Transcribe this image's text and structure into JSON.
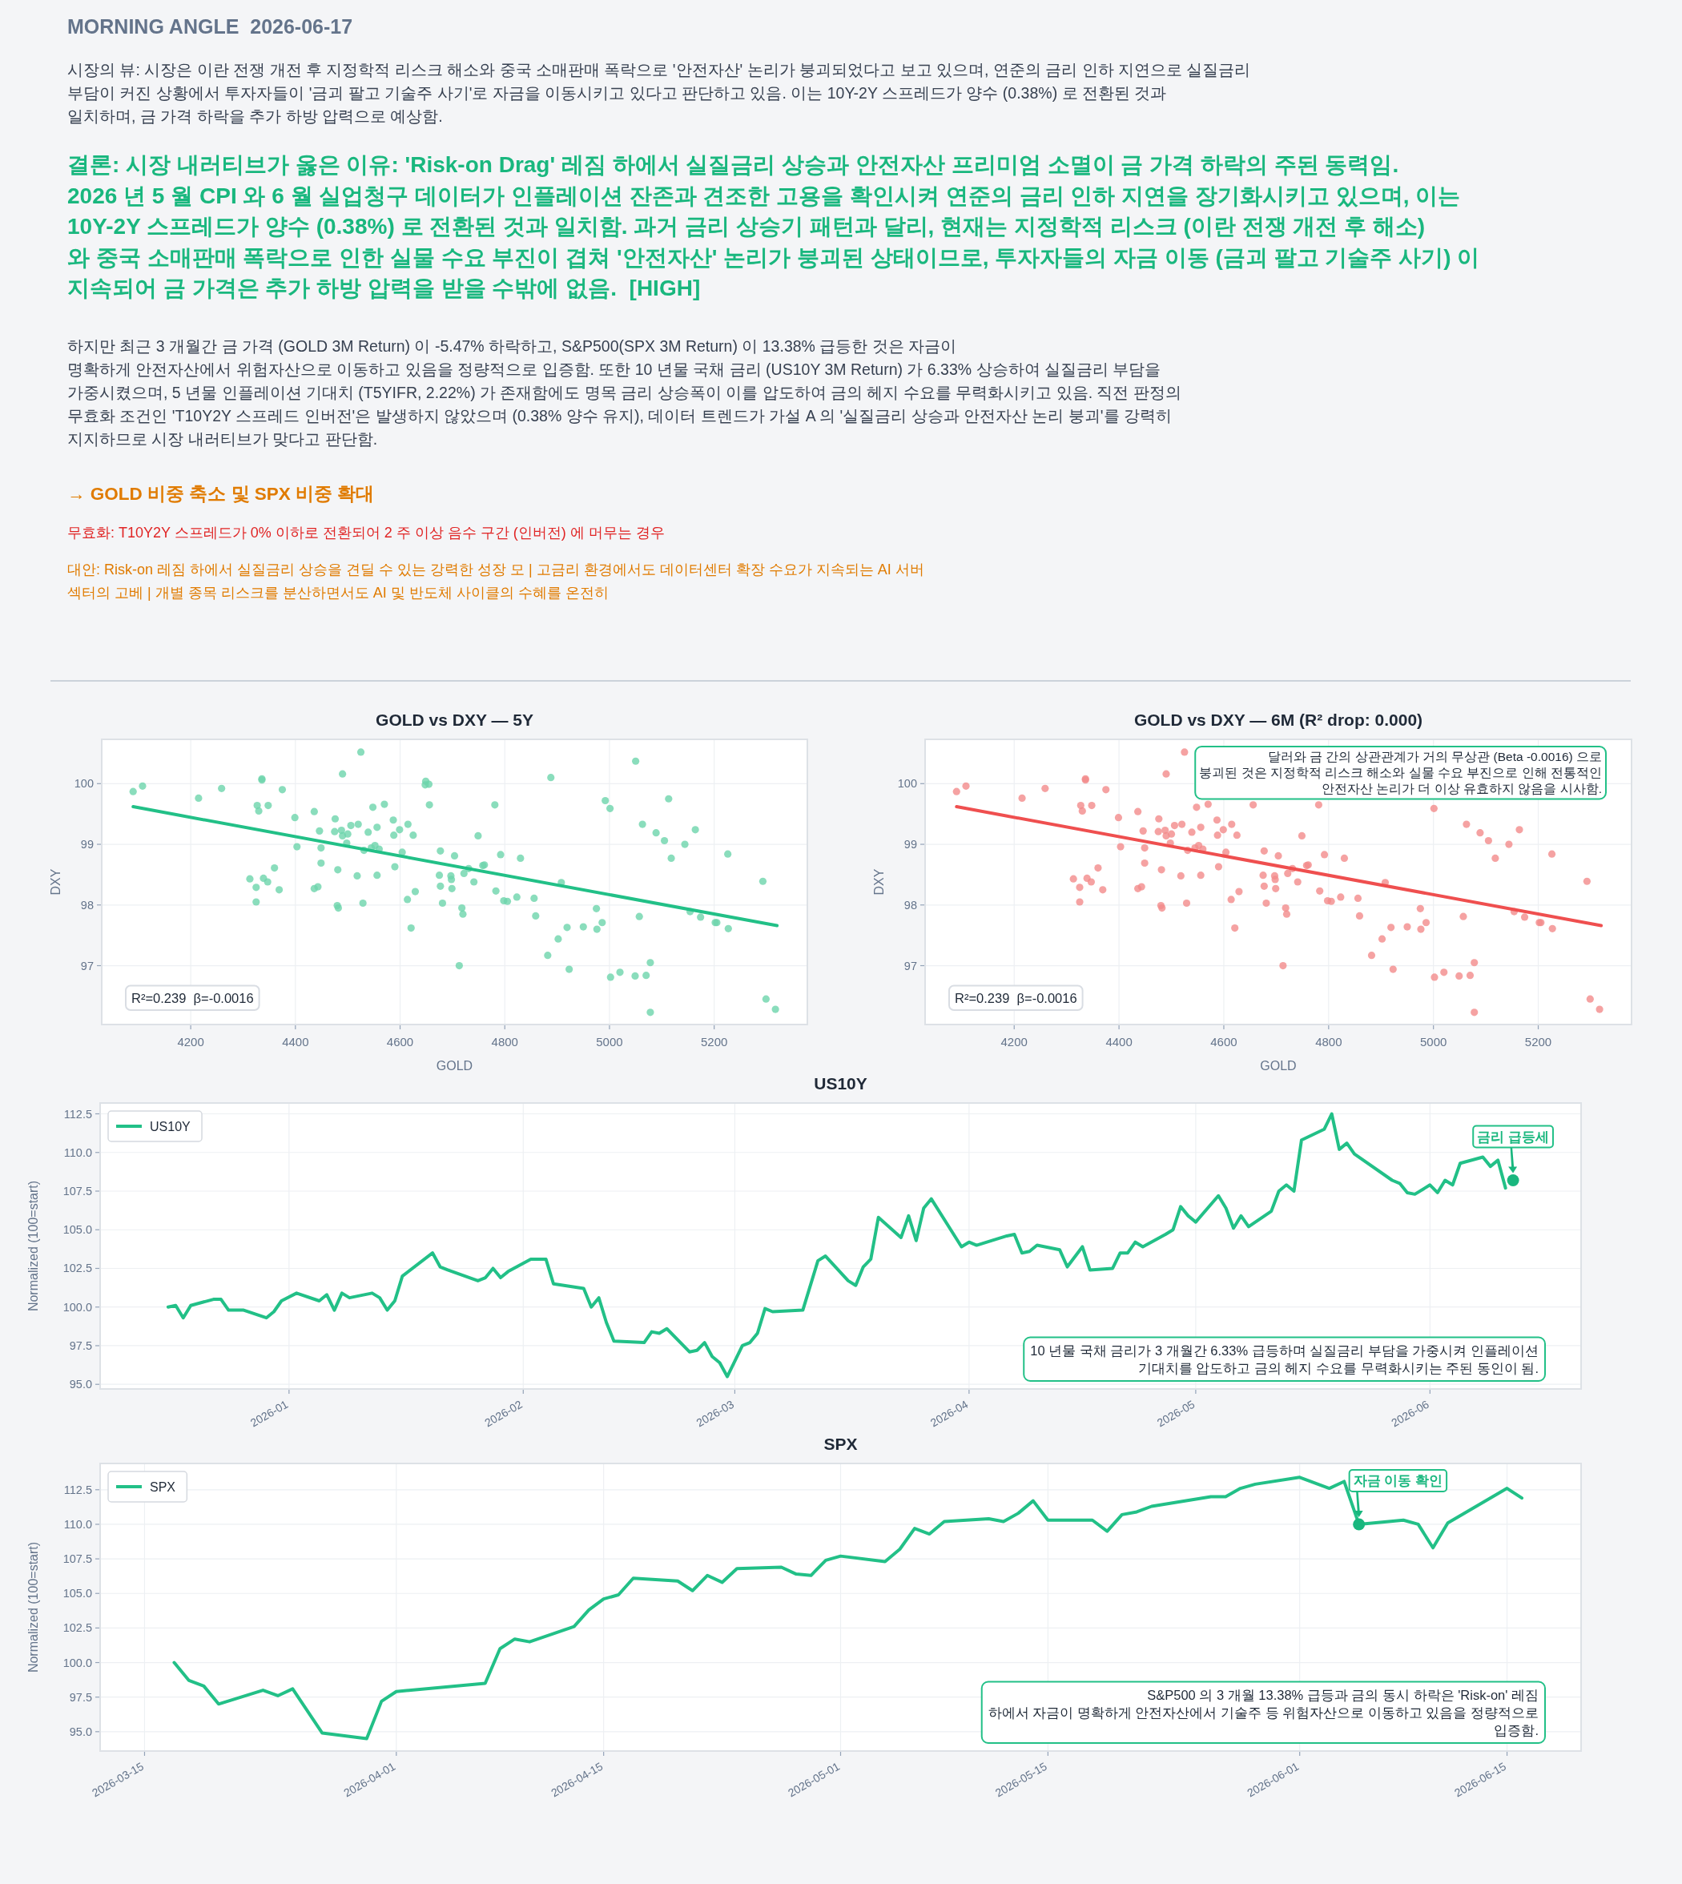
{
  "chart_data": [
    {
      "type": "other",
      "title": "MORNING ANGLE  2026-06-17",
      "annotations": [
        "시장의 뷰: 시장은 이란 전쟁 개전 후 지정학적 리스크 해소와 중국 소매판매 폭락으로 '안전자산' 논리가 붕괴되었다고 보고 있으며, 연준의 금리 인하 지연으로 실질금리\n부담이 커진 상황에서 투자자들이 '금괴 팔고 기술주 사기'로 자금을 이동시키고 있다고 판단하고 있음. 이는 10Y-2Y 스프레드가 양수 (0.38%) 로 전환된 것과\n일치하며, 금 가격 하락을 추가 하방 압력으로 예상함.",
        "결론: 시장 내러티브가 옳은 이유: 'Risk-on Drag' 레짐 하에서 실질금리 상승과 안전자산 프리미엄 소멸이 금 가격 하락의 주된 동력임.\n2026 년 5 월 CPI 와 6 월 실업청구 데이터가 인플레이션 잔존과 견조한 고용을 확인시켜 연준의 금리 인하 지연을 장기화시키고 있으며, 이는\n10Y-2Y 스프레드가 양수 (0.38%) 로 전환된 것과 일치함. 과거 금리 상승기 패턴과 달리, 현재는 지정학적 리스크 (이란 전쟁 개전 후 해소)\n와 중국 소매판매 폭락으로 인한 실물 수요 부진이 겹쳐 '안전자산' 논리가 붕괴된 상태이므로, 투자자들의 자금 이동 (금괴 팔고 기술주 사기) 이\n지속되어 금 가격은 추가 하방 압력을 받을 수밖에 없음.  [HIGH]",
        "하지만 최근 3 개월간 금 가격 (GOLD 3M Return) 이 -5.47% 하락하고, S&P500(SPX 3M Return) 이 13.38% 급등한 것은 자금이\n명확하게 안전자산에서 위험자산으로 이동하고 있음을 정량적으로 입증함. 또한 10 년물 국채 금리 (US10Y 3M Return) 가 6.33% 상승하여 실질금리 부담을\n가중시켰으며, 5 년물 인플레이션 기대치 (T5YIFR, 2.22%) 가 존재함에도 명목 금리 상승폭이 이를 압도하여 금의 헤지 수요를 무력화시키고 있음. 직전 판정의\n무효화 조건인 'T10Y2Y 스프레드 인버전'은 발생하지 않았으며 (0.38% 양수 유지), 데이터 트렌드가 가설 A 의 '실질금리 상승과 안전자산 논리 붕괴'를 강력히\n지지하므로 시장 내러티브가 맞다고 판단함.",
        "→ GOLD 비중 축소 및 SPX 비중 확대",
        "무효화: T10Y2Y 스프레드가 0% 이하로 전환되어 2 주 이상 음수 구간 (인버전) 에 머무는 경우",
        "대안: Risk-on 레짐 하에서 실질금리 상승을 견딜 수 있는 강력한 성장 모 | 고금리 환경에서도 데이터센터 확장 수요가 지속되는 AI 서버\n섹터의 고베 | 개별 종목 리스크를 분산하면서도 AI 및 반도체 사이클의 수혜를 온전히"
      ]
    },
    {
      "type": "scatter",
      "title": "GOLD vs DXY — 5Y",
      "xlabel": "GOLD",
      "ylabel": "DXY",
      "xlim": [
        4030,
        5378
      ],
      "ylim": [
        96.03,
        100.73
      ],
      "xticks": [
        4200,
        4400,
        4600,
        4800,
        5000,
        5200
      ],
      "yticks": [
        97,
        98,
        99,
        100
      ],
      "grid": true,
      "series": [
        {
          "type": "scatter",
          "color": "#6dd5ab",
          "marker": "circle",
          "x": [
            4090,
            4108,
            4215,
            4259,
            4313,
            4325,
            4325,
            4327,
            4330,
            4336,
            4336,
            4339,
            4347,
            4348,
            4360,
            4369,
            4375,
            4399,
            4403,
            4436,
            4436,
            4443,
            4446,
            4449,
            4449,
            4476,
            4475,
            4481,
            4480,
            4482,
            4490,
            4488,
            4490,
            4498,
            4500,
            4506,
            4518,
            4520,
            4525,
            4529,
            4531,
            4539,
            4545,
            4548,
            4552,
            4556,
            4556,
            4560,
            4570,
            4587,
            4588,
            4590,
            4599,
            4604,
            4615,
            4614,
            4621,
            4625,
            4629,
            4648,
            4649,
            4655,
            4656,
            4675,
            4677,
            4677,
            4681,
            4697,
            4698,
            4699,
            4704,
            4713,
            4718,
            4720,
            4722,
            4731,
            4741,
            4749,
            4758,
            4761,
            4781,
            4783,
            4792,
            4798,
            4805,
            4823,
            4830,
            4856,
            4859,
            4882,
            4888,
            4902,
            4908,
            4919,
            4923,
            4950,
            4975,
            4976,
            4986,
            4992,
            5001,
            5002,
            5020,
            5049,
            5050,
            5057,
            5063,
            5070,
            5078,
            5078,
            5089,
            5105,
            5113,
            5118,
            5144,
            5154,
            5164,
            5174,
            5202,
            5205,
            5226,
            5227,
            5293,
            5299,
            5317
          ],
          "values": [
            99.87,
            99.96,
            99.76,
            99.92,
            98.43,
            98.29,
            98.05,
            99.64,
            99.55,
            100.08,
            100.06,
            98.44,
            98.38,
            99.64,
            98.61,
            98.25,
            99.9,
            99.44,
            98.96,
            98.27,
            99.54,
            98.3,
            99.22,
            98.94,
            98.69,
            99.42,
            99.21,
            98.58,
            97.99,
            97.95,
            100.16,
            99.23,
            99.14,
            99.02,
            99.17,
            99.31,
            98.48,
            99.33,
            100.52,
            98.03,
            98.9,
            99.2,
            98.94,
            99.61,
            98.98,
            99.28,
            98.49,
            98.92,
            99.66,
            99.4,
            99.15,
            98.63,
            99.24,
            98.87,
            99.33,
            98.09,
            97.62,
            99.15,
            98.22,
            99.98,
            100.04,
            99.99,
            99.65,
            98.49,
            98.31,
            98.89,
            98.03,
            98.48,
            98.42,
            98.27,
            98.81,
            97.0,
            97.95,
            97.85,
            98.52,
            98.6,
            98.38,
            99.14,
            98.65,
            98.66,
            99.65,
            98.23,
            98.83,
            98.07,
            98.06,
            98.13,
            98.77,
            98.11,
            97.82,
            97.17,
            100.1,
            97.44,
            98.37,
            97.63,
            96.94,
            97.64,
            97.94,
            97.6,
            97.71,
            99.72,
            99.59,
            96.81,
            96.89,
            96.83,
            100.37,
            97.81,
            99.33,
            96.84,
            97.05,
            96.23,
            99.19,
            99.06,
            99.75,
            98.77,
            99.0,
            97.89,
            99.24,
            97.8,
            97.71,
            97.71,
            98.84,
            97.61,
            98.39,
            96.45,
            96.28
          ]
        },
        {
          "type": "line",
          "color": "#22c087",
          "x": [
            4090,
            5320
          ],
          "values": [
            99.62,
            97.66
          ]
        }
      ],
      "annotations": [
        "R²=0.239  β=-0.0016"
      ]
    },
    {
      "type": "scatter",
      "title": "GOLD vs DXY — 6M (R² drop: 0.000)",
      "xlabel": "GOLD",
      "ylabel": "DXY",
      "xlim": [
        4030,
        5378
      ],
      "ylim": [
        96.03,
        100.73
      ],
      "xticks": [
        4200,
        4400,
        4600,
        4800,
        5000,
        5200
      ],
      "yticks": [
        97,
        98,
        99,
        100
      ],
      "grid": true,
      "series": [
        {
          "type": "scatter",
          "color": "#f28b8b",
          "marker": "circle",
          "x": [
            4090,
            4108,
            4215,
            4259,
            4313,
            4325,
            4325,
            4327,
            4330,
            4336,
            4336,
            4339,
            4347,
            4348,
            4360,
            4369,
            4375,
            4399,
            4403,
            4436,
            4436,
            4443,
            4446,
            4449,
            4449,
            4476,
            4475,
            4481,
            4480,
            4482,
            4490,
            4488,
            4490,
            4498,
            4500,
            4506,
            4518,
            4520,
            4525,
            4529,
            4531,
            4539,
            4545,
            4548,
            4552,
            4556,
            4556,
            4560,
            4570,
            4587,
            4588,
            4590,
            4599,
            4604,
            4615,
            4614,
            4621,
            4625,
            4629,
            4648,
            4649,
            4655,
            4656,
            4675,
            4677,
            4677,
            4681,
            4697,
            4698,
            4699,
            4704,
            4713,
            4718,
            4720,
            4722,
            4731,
            4741,
            4749,
            4758,
            4761,
            4781,
            4783,
            4792,
            4798,
            4805,
            4823,
            4830,
            4856,
            4859,
            4882,
            4888,
            4902,
            4908,
            4919,
            4923,
            4950,
            4975,
            4976,
            4986,
            4992,
            5001,
            5002,
            5020,
            5049,
            5050,
            5057,
            5063,
            5070,
            5078,
            5078,
            5089,
            5105,
            5113,
            5118,
            5144,
            5154,
            5164,
            5174,
            5202,
            5205,
            5226,
            5227,
            5293,
            5299,
            5317
          ],
          "values": [
            99.87,
            99.96,
            99.76,
            99.92,
            98.43,
            98.29,
            98.05,
            99.64,
            99.55,
            100.08,
            100.06,
            98.44,
            98.38,
            99.64,
            98.61,
            98.25,
            99.9,
            99.44,
            98.96,
            98.27,
            99.54,
            98.3,
            99.22,
            98.94,
            98.69,
            99.42,
            99.21,
            98.58,
            97.99,
            97.95,
            100.16,
            99.23,
            99.14,
            99.02,
            99.17,
            99.31,
            98.48,
            99.33,
            100.52,
            98.03,
            98.9,
            99.2,
            98.94,
            99.61,
            98.98,
            99.28,
            98.49,
            98.92,
            99.66,
            99.4,
            99.15,
            98.63,
            99.24,
            98.87,
            99.33,
            98.09,
            97.62,
            99.15,
            98.22,
            null,
            null,
            null,
            99.65,
            98.49,
            98.31,
            98.89,
            98.03,
            98.48,
            98.42,
            98.27,
            98.81,
            97.0,
            97.95,
            97.85,
            98.52,
            98.6,
            98.38,
            99.14,
            98.65,
            98.66,
            99.65,
            98.23,
            98.83,
            98.07,
            98.06,
            98.13,
            98.77,
            98.11,
            97.82,
            97.17,
            null,
            97.44,
            98.37,
            97.63,
            96.94,
            97.64,
            97.94,
            97.6,
            97.71,
            null,
            99.59,
            96.81,
            96.89,
            96.83,
            null,
            97.81,
            99.33,
            96.84,
            97.05,
            96.23,
            99.19,
            99.06,
            null,
            98.77,
            99.0,
            97.89,
            99.24,
            97.8,
            97.71,
            97.71,
            98.84,
            97.61,
            98.39,
            96.45,
            96.28
          ]
        },
        {
          "type": "line",
          "color": "#ef4f4f",
          "x": [
            4090,
            5320
          ],
          "values": [
            99.62,
            97.66
          ]
        }
      ],
      "annotations": [
        "R²=0.239  β=-0.0016",
        "달러와 금 간의 상관관계가 거의 무상관 (Beta -0.0016) 으로\n붕괴된 것은 지정학적 리스크 해소와 실물 수요 부진으로 인해 전통적인\n안전자산 논리가 더 이상 유효하지 않음을 시사함."
      ]
    },
    {
      "type": "line",
      "title": "US10Y",
      "ylabel": "Normalized (100=start)",
      "xlim": [
        "2025-12-07",
        "2026-06-21"
      ],
      "ylim": [
        94.7,
        113.2
      ],
      "xticks": [
        {
          "value": "2026-01-01",
          "label": "2026-01"
        },
        {
          "value": "2026-02-01",
          "label": "2026-02"
        },
        {
          "value": "2026-03-01",
          "label": "2026-03"
        },
        {
          "value": "2026-04-01",
          "label": "2026-04"
        },
        {
          "value": "2026-05-01",
          "label": "2026-05"
        },
        {
          "value": "2026-06-01",
          "label": "2026-06"
        }
      ],
      "yticks": [
        {
          "value": 95,
          "label": "95.0"
        },
        {
          "value": 97.5,
          "label": "97.5"
        },
        {
          "value": 100,
          "label": "100.0"
        },
        {
          "value": 102.5,
          "label": "102.5"
        },
        {
          "value": 105,
          "label": "105.0"
        },
        {
          "value": 107.5,
          "label": "107.5"
        },
        {
          "value": 110,
          "label": "110.0"
        },
        {
          "value": 112.5,
          "label": "112.5"
        }
      ],
      "grid": true,
      "legend": "top left",
      "series": [
        {
          "name": "US10Y",
          "color": "#22c087",
          "x": [
            "2025-12-16",
            "2025-12-17",
            "2025-12-18",
            "2025-12-19",
            "2025-12-22",
            "2025-12-23",
            "2025-12-24",
            "2025-12-26",
            "2025-12-29",
            "2025-12-30",
            "2025-12-31",
            "2026-01-02",
            "2026-01-05",
            "2026-01-06",
            "2026-01-07",
            "2026-01-08",
            "2026-01-09",
            "2026-01-12",
            "2026-01-13",
            "2026-01-14",
            "2026-01-15",
            "2026-01-16",
            "2026-01-20",
            "2026-01-21",
            "2026-01-22",
            "2026-01-26",
            "2026-01-27",
            "2026-01-28",
            "2026-01-29",
            "2026-01-30",
            "2026-02-02",
            "2026-02-04",
            "2026-02-05",
            "2026-02-09",
            "2026-02-10",
            "2026-02-11",
            "2026-02-12",
            "2026-02-13",
            "2026-02-17",
            "2026-02-18",
            "2026-02-19",
            "2026-02-20",
            "2026-02-23",
            "2026-02-24",
            "2026-02-25",
            "2026-02-26",
            "2026-02-27",
            "2026-02-28",
            "2026-03-02",
            "2026-03-03",
            "2026-03-04",
            "2026-03-05",
            "2026-03-06",
            "2026-03-10",
            "2026-03-12",
            "2026-03-13",
            "2026-03-16",
            "2026-03-17",
            "2026-03-18",
            "2026-03-19",
            "2026-03-20",
            "2026-03-23",
            "2026-03-24",
            "2026-03-25",
            "2026-03-26",
            "2026-03-27",
            "2026-03-31",
            "2026-04-01",
            "2026-04-02",
            "2026-04-06",
            "2026-04-07",
            "2026-04-08",
            "2026-04-09",
            "2026-04-10",
            "2026-04-13",
            "2026-04-14",
            "2026-04-16",
            "2026-04-17",
            "2026-04-20",
            "2026-04-21",
            "2026-04-22",
            "2026-04-23",
            "2026-04-24",
            "2026-04-27",
            "2026-04-28",
            "2026-04-29",
            "2026-04-30",
            "2026-05-01",
            "2026-05-04",
            "2026-05-05",
            "2026-05-06",
            "2026-05-07",
            "2026-05-08",
            "2026-05-11",
            "2026-05-12",
            "2026-05-13",
            "2026-05-14",
            "2026-05-15",
            "2026-05-18",
            "2026-05-19",
            "2026-05-20",
            "2026-05-21",
            "2026-05-22",
            "2026-05-27",
            "2026-05-28",
            "2026-05-29",
            "2026-05-30",
            "2026-06-01",
            "2026-06-02",
            "2026-06-03",
            "2026-06-04",
            "2026-06-05",
            "2026-06-08",
            "2026-06-09",
            "2026-06-10",
            "2026-06-11"
          ],
          "values": [
            100.0,
            100.1,
            99.3,
            100.1,
            100.5,
            100.5,
            99.8,
            99.8,
            99.3,
            99.7,
            100.4,
            100.9,
            100.4,
            100.8,
            99.8,
            100.9,
            100.6,
            100.9,
            100.6,
            99.8,
            100.4,
            102.0,
            103.5,
            102.6,
            102.4,
            101.7,
            101.9,
            102.5,
            101.9,
            102.3,
            103.1,
            103.1,
            101.5,
            101.2,
            100.0,
            100.6,
            99.0,
            97.8,
            97.7,
            98.4,
            98.3,
            98.6,
            97.1,
            97.2,
            97.7,
            96.8,
            96.4,
            95.5,
            97.5,
            97.7,
            98.3,
            99.9,
            99.7,
            99.8,
            103.0,
            103.3,
            101.7,
            101.4,
            102.6,
            103.1,
            105.8,
            104.5,
            105.9,
            104.3,
            106.4,
            107.0,
            103.9,
            104.2,
            104.0,
            104.6,
            104.7,
            103.5,
            103.6,
            104.0,
            103.7,
            102.6,
            103.9,
            102.4,
            102.5,
            103.5,
            103.5,
            104.2,
            103.9,
            104.7,
            105.0,
            106.5,
            105.9,
            105.5,
            107.2,
            106.4,
            105.1,
            105.9,
            105.2,
            106.2,
            107.5,
            107.9,
            107.5,
            110.8,
            111.5,
            112.5,
            110.2,
            110.6,
            109.9,
            108.2,
            108.0,
            107.4,
            107.3,
            107.9,
            107.4,
            108.2,
            107.9,
            109.3,
            109.7,
            109.1,
            109.5,
            107.7
          ]
        }
      ],
      "annotations": [
        {
          "text": "금리 급등세",
          "x": "2026-06-12",
          "y": 108.2
        },
        "10 년물 국채 금리가 3 개월간 6.33% 급등하며 실질금리 부담을 가중시켜 인플레이션\n기대치를 압도하고 금의 헤지 수요를 무력화시키는 주된 동인이 됨."
      ]
    },
    {
      "type": "line",
      "title": "SPX",
      "ylabel": "Normalized (100=start)",
      "xlim": [
        "2026-03-12",
        "2026-06-20"
      ],
      "ylim": [
        93.6,
        114.4
      ],
      "xticks": [
        {
          "value": "2026-03-15",
          "label": "2026-03-15"
        },
        {
          "value": "2026-04-01",
          "label": "2026-04-01"
        },
        {
          "value": "2026-04-15",
          "label": "2026-04-15"
        },
        {
          "value": "2026-05-01",
          "label": "2026-05-01"
        },
        {
          "value": "2026-05-15",
          "label": "2026-05-15"
        },
        {
          "value": "2026-06-01",
          "label": "2026-06-01"
        },
        {
          "value": "2026-06-15",
          "label": "2026-06-15"
        }
      ],
      "yticks": [
        {
          "value": 95,
          "label": "95.0"
        },
        {
          "value": 97.5,
          "label": "97.5"
        },
        {
          "value": 100,
          "label": "100.0"
        },
        {
          "value": 102.5,
          "label": "102.5"
        },
        {
          "value": 105,
          "label": "105.0"
        },
        {
          "value": 107.5,
          "label": "107.5"
        },
        {
          "value": 110,
          "label": "110.0"
        },
        {
          "value": 112.5,
          "label": "112.5"
        }
      ],
      "grid": true,
      "legend": "top left",
      "series": [
        {
          "name": "SPX",
          "color": "#22c087",
          "x": [
            "2026-03-17",
            "2026-03-18",
            "2026-03-19",
            "2026-03-20",
            "2026-03-23",
            "2026-03-24",
            "2026-03-25",
            "2026-03-27",
            "2026-03-30",
            "2026-03-31",
            "2026-04-01",
            "2026-04-07",
            "2026-04-08",
            "2026-04-09",
            "2026-04-10",
            "2026-04-13",
            "2026-04-14",
            "2026-04-15",
            "2026-04-16",
            "2026-04-17",
            "2026-04-20",
            "2026-04-21",
            "2026-04-22",
            "2026-04-23",
            "2026-04-24",
            "2026-04-27",
            "2026-04-28",
            "2026-04-29",
            "2026-04-30",
            "2026-05-01",
            "2026-05-04",
            "2026-05-05",
            "2026-05-06",
            "2026-05-07",
            "2026-05-08",
            "2026-05-11",
            "2026-05-12",
            "2026-05-13",
            "2026-05-14",
            "2026-05-15",
            "2026-05-18",
            "2026-05-19",
            "2026-05-20",
            "2026-05-21",
            "2026-05-22",
            "2026-05-26",
            "2026-05-27",
            "2026-05-28",
            "2026-05-29",
            "2026-06-01",
            "2026-06-03",
            "2026-06-04",
            "2026-06-05",
            "2026-06-08",
            "2026-06-09",
            "2026-06-10",
            "2026-06-11",
            "2026-06-15",
            "2026-06-16"
          ],
          "values": [
            100.0,
            98.7,
            98.3,
            97.0,
            98.0,
            97.6,
            98.1,
            94.9,
            94.5,
            97.2,
            97.9,
            98.5,
            101.0,
            101.7,
            101.5,
            102.6,
            103.8,
            104.6,
            104.9,
            106.1,
            105.9,
            105.2,
            106.3,
            105.8,
            106.8,
            106.9,
            106.4,
            106.3,
            107.4,
            107.7,
            107.3,
            108.2,
            109.7,
            109.3,
            110.2,
            110.4,
            110.2,
            110.8,
            111.7,
            110.3,
            110.3,
            109.5,
            110.7,
            110.9,
            111.3,
            112.0,
            112.0,
            112.6,
            112.9,
            113.4,
            112.6,
            113.1,
            110.0,
            110.3,
            110.0,
            108.3,
            110.1,
            112.6,
            111.9
          ]
        }
      ],
      "annotations": [
        {
          "text": "자금 이동 확인",
          "x": "2026-06-05",
          "y": 110.0
        },
        "S&P500 의 3 개월 13.38% 급등과 금의 동시 하락은 'Risk-on' 레짐\n하에서 자금이 명확하게 안전자산에서 기술주 등 위험자산으로 이동하고 있음을 정량적으로\n입증함."
      ]
    }
  ]
}
